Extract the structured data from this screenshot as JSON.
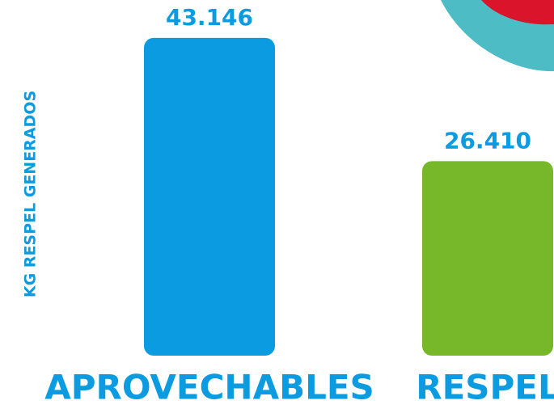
{
  "chart_data": {
    "type": "bar",
    "y_label": "KG RESPEL GENERADOS",
    "categories": [
      "APROVECHABLES",
      "RESPEL"
    ],
    "values": [
      43146,
      26410
    ],
    "value_labels": [
      "43.146",
      "26.410"
    ],
    "colors": [
      "#0a9be0",
      "#77b82a"
    ],
    "ylim": [
      0,
      45000
    ]
  }
}
